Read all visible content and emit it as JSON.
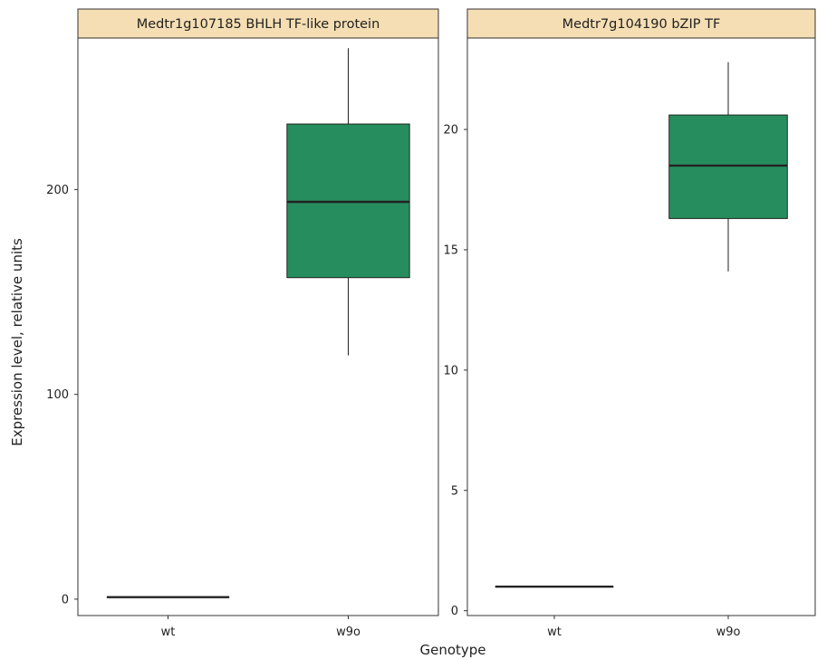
{
  "axis_titles": {
    "x": "Genotype",
    "y": "Expression level, relative units"
  },
  "colors": {
    "box_fill": "#268e5e",
    "box_stroke": "#222222",
    "strip_fill": "#f5deb3",
    "panel_border": "#333333"
  },
  "chart_data": [
    {
      "type": "box",
      "title": "Medtr1g107185 BHLH TF-like protein",
      "xlabel": "Genotype",
      "ylabel": "Expression level, relative units",
      "categories": [
        "wt",
        "w9o"
      ],
      "ylim": [
        -8,
        274
      ],
      "y_ticks": [
        0,
        100,
        200
      ],
      "grid": false,
      "boxes": [
        {
          "category": "wt",
          "min": 1,
          "q1": 1,
          "median": 1,
          "q3": 1,
          "max": 1
        },
        {
          "category": "w9o",
          "min": 119,
          "q1": 157,
          "median": 194,
          "q3": 232,
          "max": 269
        }
      ]
    },
    {
      "type": "box",
      "title": "Medtr7g104190 bZIP TF",
      "xlabel": "Genotype",
      "ylabel": "",
      "categories": [
        "wt",
        "w9o"
      ],
      "ylim": [
        -0.2,
        23.8
      ],
      "y_ticks": [
        0,
        5,
        10,
        15,
        20
      ],
      "grid": false,
      "boxes": [
        {
          "category": "wt",
          "min": 1,
          "q1": 1,
          "median": 1,
          "q3": 1,
          "max": 1
        },
        {
          "category": "w9o",
          "min": 14.1,
          "q1": 16.3,
          "median": 18.5,
          "q3": 20.6,
          "max": 22.8
        }
      ]
    }
  ]
}
